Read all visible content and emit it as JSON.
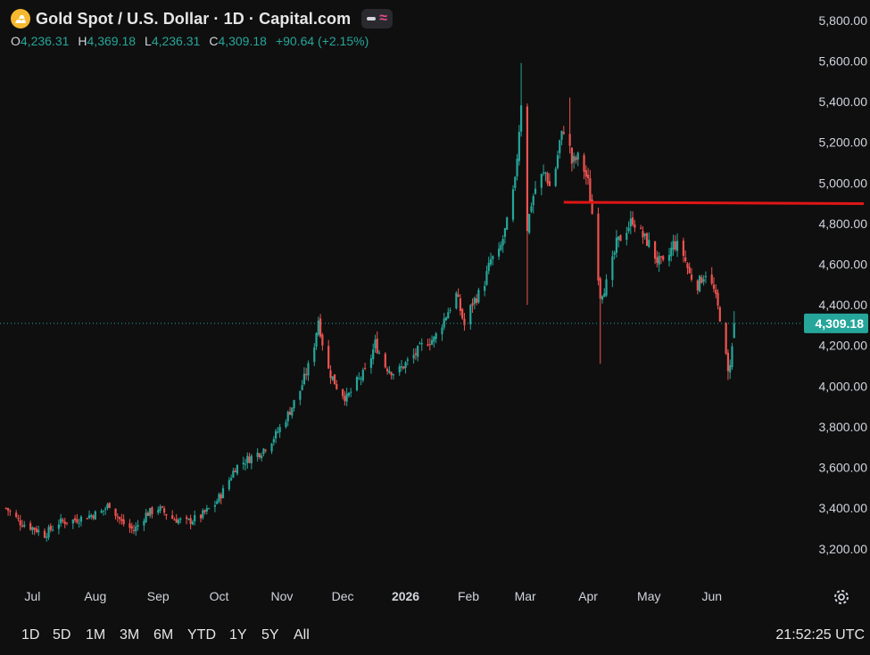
{
  "header": {
    "title": "Gold Spot / U.S. Dollar · 1D · Capital.com",
    "ohlc": [
      {
        "key": "O",
        "value": "4,236.31"
      },
      {
        "key": "H",
        "value": "4,369.18"
      },
      {
        "key": "L",
        "value": "4,236.31"
      },
      {
        "key": "C",
        "value": "4,309.18"
      }
    ],
    "change": "+90.64 (+2.15%)",
    "icon": "gold-coin-icon",
    "indicator_icon": "wave-icon"
  },
  "colors": {
    "background": "#0f0f0f",
    "up": "#26a69a",
    "down": "#ef5350",
    "axis_text": "#d1d4dc",
    "resistance": "#e01616",
    "price_label": "#26a69a"
  },
  "range_buttons": [
    "1D",
    "5D",
    "1M",
    "3M",
    "6M",
    "YTD",
    "1Y",
    "5Y",
    "All"
  ],
  "clock": "21:52:25 UTC",
  "settings_icon": "gear-icon",
  "chart_data": {
    "type": "candlestick",
    "title": "Gold Spot / U.S. Dollar · 1D · Capital.com",
    "ylim": [
      3050,
      5900
    ],
    "y_ticks": [
      "3,200.00",
      "3,400.00",
      "3,600.00",
      "3,800.00",
      "4,000.00",
      "4,200.00",
      "4,400.00",
      "4,600.00",
      "4,800.00",
      "5,000.00",
      "5,200.00",
      "5,400.00",
      "5,600.00",
      "5,800.00"
    ],
    "y_tick_values": [
      3200,
      3400,
      3600,
      3800,
      4000,
      4200,
      4400,
      4600,
      4800,
      5000,
      5200,
      5400,
      5600,
      5800
    ],
    "x_ticks": [
      "Jul",
      "Aug",
      "Sep",
      "Oct",
      "Nov",
      "Dec",
      "2026",
      "Feb",
      "Mar",
      "Apr",
      "May",
      "Jun"
    ],
    "x_tick_dates": [
      "2025-07-01",
      "2025-08-01",
      "2025-09-01",
      "2025-10-01",
      "2025-11-01",
      "2025-12-01",
      "2026-01-01",
      "2026-02-01",
      "2026-03-01",
      "2026-04-01",
      "2026-05-01",
      "2026-06-01"
    ],
    "last_price": 4309.18,
    "last_price_label": "4,309.18",
    "resistance_line": {
      "from": "2026-03-20",
      "to": "2026-06-30",
      "from_value": 4905,
      "to_value": 4898
    },
    "series_close": [
      [
        "2025-06-18",
        3400
      ],
      [
        "2025-06-25",
        3330
      ],
      [
        "2025-07-02",
        3300
      ],
      [
        "2025-07-07",
        3270
      ],
      [
        "2025-07-14",
        3330
      ],
      [
        "2025-07-21",
        3340
      ],
      [
        "2025-07-28",
        3360
      ],
      [
        "2025-08-04",
        3380
      ],
      [
        "2025-08-08",
        3420
      ],
      [
        "2025-08-14",
        3330
      ],
      [
        "2025-08-20",
        3290
      ],
      [
        "2025-08-26",
        3370
      ],
      [
        "2025-09-01",
        3400
      ],
      [
        "2025-09-08",
        3350
      ],
      [
        "2025-09-15",
        3330
      ],
      [
        "2025-09-22",
        3360
      ],
      [
        "2025-09-29",
        3420
      ],
      [
        "2025-10-04",
        3500
      ],
      [
        "2025-10-09",
        3600
      ],
      [
        "2025-10-15",
        3640
      ],
      [
        "2025-10-22",
        3680
      ],
      [
        "2025-10-29",
        3760
      ],
      [
        "2025-11-04",
        3860
      ],
      [
        "2025-11-10",
        3980
      ],
      [
        "2025-11-16",
        4150
      ],
      [
        "2025-11-19",
        4330
      ],
      [
        "2025-11-23",
        4100
      ],
      [
        "2025-11-28",
        4000
      ],
      [
        "2025-12-03",
        3940
      ],
      [
        "2025-12-08",
        4020
      ],
      [
        "2025-12-13",
        4080
      ],
      [
        "2025-12-17",
        4210
      ],
      [
        "2025-12-22",
        4100
      ],
      [
        "2025-12-27",
        4060
      ],
      [
        "2026-01-01",
        4110
      ],
      [
        "2026-01-06",
        4160
      ],
      [
        "2026-01-11",
        4220
      ],
      [
        "2026-01-15",
        4230
      ],
      [
        "2026-01-20",
        4330
      ],
      [
        "2026-01-26",
        4450
      ],
      [
        "2026-01-30",
        4300
      ],
      [
        "2026-02-03",
        4410
      ],
      [
        "2026-02-08",
        4480
      ],
      [
        "2026-02-12",
        4620
      ],
      [
        "2026-02-16",
        4650
      ],
      [
        "2026-02-20",
        4800
      ],
      [
        "2026-02-24",
        5000
      ],
      [
        "2026-02-27",
        5400
      ],
      [
        "2026-03-01",
        4720
      ],
      [
        "2026-03-04",
        4900
      ],
      [
        "2026-03-07",
        5010
      ],
      [
        "2026-03-11",
        5050
      ],
      [
        "2026-03-14",
        4950
      ],
      [
        "2026-03-18",
        5200
      ],
      [
        "2026-03-21",
        5300
      ],
      [
        "2026-03-24",
        5100
      ],
      [
        "2026-03-28",
        5130
      ],
      [
        "2026-04-01",
        5000
      ],
      [
        "2026-04-03",
        4850
      ],
      [
        "2026-04-07",
        4450
      ],
      [
        "2026-04-11",
        4520
      ],
      [
        "2026-04-15",
        4700
      ],
      [
        "2026-04-19",
        4760
      ],
      [
        "2026-04-23",
        4820
      ],
      [
        "2026-04-27",
        4750
      ],
      [
        "2026-05-01",
        4700
      ],
      [
        "2026-05-05",
        4620
      ],
      [
        "2026-05-09",
        4590
      ],
      [
        "2026-05-13",
        4700
      ],
      [
        "2026-05-17",
        4680
      ],
      [
        "2026-05-21",
        4550
      ],
      [
        "2026-05-25",
        4500
      ],
      [
        "2026-05-29",
        4560
      ],
      [
        "2026-06-02",
        4470
      ],
      [
        "2026-06-06",
        4300
      ],
      [
        "2026-06-09",
        4060
      ],
      [
        "2026-06-12",
        4250
      ],
      [
        "2026-06-14",
        4309.18
      ]
    ]
  }
}
